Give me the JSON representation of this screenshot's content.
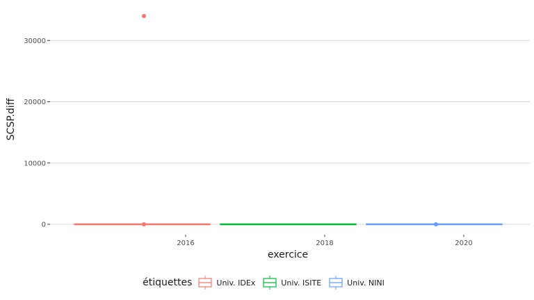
{
  "chart_data": {
    "type": "box",
    "xlabel": "exercice",
    "ylabel": "SCSP.diff",
    "xlim": [
      2014.05,
      2020.95
    ],
    "ylim": [
      -1700,
      35700
    ],
    "x_ticks": [
      2016,
      2018,
      2020
    ],
    "y_ticks": [
      0,
      10000,
      20000,
      30000
    ],
    "y_tick_labels": [
      "0",
      "10000",
      "20000",
      "30000"
    ],
    "grid": true,
    "legend": {
      "title": "étiquettes",
      "position": "bottom",
      "entries": [
        "Univ. IDEx",
        "Univ. ISITE",
        "Univ. NINI"
      ]
    },
    "series": [
      {
        "name": "Univ. IDEx",
        "color": "#F8766D",
        "x_range": [
          2014.4,
          2016.35
        ],
        "median": 0,
        "q1": 0,
        "q3": 0,
        "whisker_low": 0,
        "whisker_high": 0,
        "outliers": [
          {
            "x": 2015.4,
            "y": 34000
          },
          {
            "x": 2015.4,
            "y": 0
          }
        ]
      },
      {
        "name": "Univ. ISITE",
        "color": "#00BA38",
        "x_range": [
          2016.5,
          2018.45
        ],
        "median": 0,
        "q1": 0,
        "q3": 0,
        "whisker_low": 0,
        "whisker_high": 0,
        "outliers": []
      },
      {
        "name": "Univ. NINI",
        "color": "#619CFF",
        "x_range": [
          2018.6,
          2020.55
        ],
        "median": 0,
        "q1": 0,
        "q3": 0,
        "whisker_low": 0,
        "whisker_high": 0,
        "outliers": [
          {
            "x": 2019.6,
            "y": 0
          }
        ]
      }
    ]
  }
}
